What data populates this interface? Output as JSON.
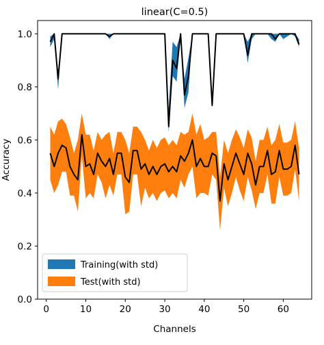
{
  "chart_data": {
    "type": "line",
    "title": "linear(C=0.5)",
    "xlabel": "Channels",
    "ylabel": "Accuracy",
    "xlim": [
      -2.2,
      67.2
    ],
    "ylim": [
      0.0,
      1.05
    ],
    "xticks": [
      "0",
      "10",
      "20",
      "30",
      "40",
      "50",
      "60"
    ],
    "yticks": [
      "0.0",
      "0.2",
      "0.4",
      "0.6",
      "0.8",
      "1.0"
    ],
    "grid": false,
    "legend_position": "lower-left",
    "x": [
      1,
      2,
      3,
      4,
      5,
      6,
      7,
      8,
      9,
      10,
      11,
      12,
      13,
      14,
      15,
      16,
      17,
      18,
      19,
      20,
      21,
      22,
      23,
      24,
      25,
      26,
      27,
      28,
      29,
      30,
      31,
      32,
      33,
      34,
      35,
      36,
      37,
      38,
      39,
      40,
      41,
      42,
      43,
      44,
      45,
      46,
      47,
      48,
      49,
      50,
      51,
      52,
      53,
      54,
      55,
      56,
      57,
      58,
      59,
      60,
      61,
      62,
      63,
      64
    ],
    "series": [
      {
        "name": "Training(with std)",
        "color": "#1f77b4",
        "mean": [
          0.97,
          1.0,
          0.83,
          1.0,
          1.0,
          1.0,
          1.0,
          1.0,
          1.0,
          1.0,
          1.0,
          1.0,
          1.0,
          1.0,
          1.0,
          0.99,
          1.0,
          1.0,
          1.0,
          1.0,
          1.0,
          1.0,
          1.0,
          1.0,
          1.0,
          1.0,
          1.0,
          1.0,
          1.0,
          1.0,
          0.65,
          0.9,
          0.87,
          1.0,
          0.77,
          0.84,
          1.0,
          1.0,
          1.0,
          1.0,
          1.0,
          0.73,
          1.0,
          1.0,
          1.0,
          1.0,
          1.0,
          1.0,
          1.0,
          1.0,
          0.92,
          1.0,
          1.0,
          1.0,
          1.0,
          1.0,
          1.0,
          0.98,
          1.0,
          1.0,
          1.0,
          1.0,
          1.0,
          0.96
        ],
        "upper": [
          0.99,
          1.0,
          0.86,
          1.0,
          1.0,
          1.0,
          1.0,
          1.0,
          1.0,
          1.0,
          1.0,
          1.0,
          1.0,
          1.0,
          1.0,
          1.0,
          1.0,
          1.0,
          1.0,
          1.0,
          1.0,
          1.0,
          1.0,
          1.0,
          1.0,
          1.0,
          1.0,
          1.0,
          1.0,
          1.0,
          0.72,
          0.97,
          0.95,
          1.0,
          0.83,
          0.91,
          1.0,
          1.0,
          1.0,
          1.0,
          1.0,
          0.76,
          1.0,
          1.0,
          1.0,
          1.0,
          1.0,
          1.0,
          1.0,
          1.0,
          0.97,
          1.0,
          1.0,
          1.0,
          1.0,
          1.0,
          1.0,
          1.0,
          1.0,
          1.0,
          1.0,
          1.0,
          1.0,
          0.98
        ],
        "lower": [
          0.95,
          0.98,
          0.79,
          1.0,
          1.0,
          1.0,
          1.0,
          1.0,
          1.0,
          1.0,
          1.0,
          1.0,
          1.0,
          1.0,
          1.0,
          0.98,
          1.0,
          1.0,
          1.0,
          1.0,
          1.0,
          1.0,
          1.0,
          1.0,
          1.0,
          1.0,
          1.0,
          1.0,
          1.0,
          1.0,
          0.63,
          0.84,
          0.82,
          0.99,
          0.72,
          0.78,
          1.0,
          1.0,
          1.0,
          1.0,
          1.0,
          0.72,
          1.0,
          1.0,
          1.0,
          1.0,
          1.0,
          1.0,
          1.0,
          1.0,
          0.89,
          0.98,
          1.0,
          1.0,
          1.0,
          1.0,
          0.98,
          0.97,
          1.0,
          0.98,
          0.99,
          1.0,
          0.99,
          0.95
        ]
      },
      {
        "name": "Test(with std)",
        "color": "#ff7f0e",
        "mean": [
          0.55,
          0.5,
          0.55,
          0.58,
          0.57,
          0.5,
          0.47,
          0.45,
          0.62,
          0.5,
          0.51,
          0.47,
          0.55,
          0.52,
          0.5,
          0.53,
          0.47,
          0.55,
          0.55,
          0.46,
          0.44,
          0.56,
          0.56,
          0.49,
          0.51,
          0.47,
          0.5,
          0.47,
          0.5,
          0.51,
          0.48,
          0.5,
          0.48,
          0.54,
          0.52,
          0.55,
          0.6,
          0.5,
          0.53,
          0.5,
          0.5,
          0.55,
          0.54,
          0.37,
          0.51,
          0.45,
          0.5,
          0.55,
          0.51,
          0.47,
          0.55,
          0.51,
          0.43,
          0.5,
          0.5,
          0.56,
          0.47,
          0.48,
          0.56,
          0.49,
          0.49,
          0.5,
          0.58,
          0.47
        ],
        "upper": [
          0.65,
          0.62,
          0.67,
          0.68,
          0.66,
          0.61,
          0.55,
          0.6,
          0.7,
          0.62,
          0.62,
          0.56,
          0.63,
          0.6,
          0.62,
          0.63,
          0.55,
          0.63,
          0.63,
          0.6,
          0.55,
          0.65,
          0.65,
          0.63,
          0.6,
          0.56,
          0.6,
          0.57,
          0.6,
          0.61,
          0.58,
          0.6,
          0.58,
          0.63,
          0.62,
          0.63,
          0.7,
          0.62,
          0.66,
          0.6,
          0.61,
          0.63,
          0.63,
          0.46,
          0.6,
          0.55,
          0.6,
          0.64,
          0.61,
          0.57,
          0.64,
          0.61,
          0.52,
          0.6,
          0.6,
          0.65,
          0.58,
          0.6,
          0.66,
          0.59,
          0.59,
          0.6,
          0.67,
          0.57
        ],
        "lower": [
          0.45,
          0.4,
          0.43,
          0.48,
          0.48,
          0.39,
          0.39,
          0.33,
          0.54,
          0.38,
          0.4,
          0.38,
          0.47,
          0.44,
          0.38,
          0.43,
          0.39,
          0.47,
          0.47,
          0.32,
          0.33,
          0.47,
          0.47,
          0.35,
          0.42,
          0.38,
          0.4,
          0.37,
          0.4,
          0.41,
          0.38,
          0.4,
          0.38,
          0.45,
          0.42,
          0.47,
          0.5,
          0.38,
          0.4,
          0.4,
          0.39,
          0.47,
          0.45,
          0.26,
          0.42,
          0.35,
          0.4,
          0.46,
          0.41,
          0.37,
          0.46,
          0.41,
          0.34,
          0.4,
          0.4,
          0.47,
          0.36,
          0.36,
          0.46,
          0.39,
          0.39,
          0.4,
          0.49,
          0.37
        ]
      }
    ]
  }
}
